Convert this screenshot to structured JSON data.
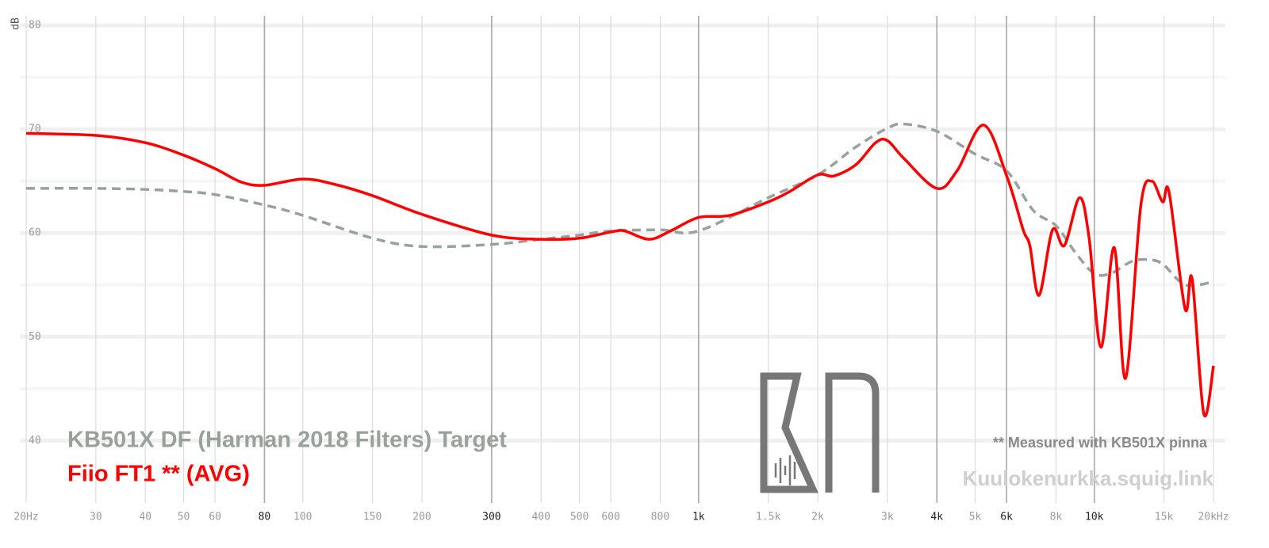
{
  "chart_data": {
    "type": "line",
    "xscale": "log",
    "y_label": "dB",
    "xlim": [
      20,
      20000
    ],
    "ylim": [
      34,
      81
    ],
    "yticks": [
      40,
      50,
      60,
      70,
      80
    ],
    "minor_yticks": [
      45,
      55,
      65,
      75
    ],
    "xticks": [
      {
        "value": 20,
        "label": "20Hz"
      },
      30,
      40,
      50,
      60,
      80,
      100,
      150,
      200,
      300,
      400,
      500,
      600,
      800,
      {
        "value": 1000,
        "label": "1k"
      },
      {
        "value": 1500,
        "label": "1.5k"
      },
      {
        "value": 2000,
        "label": "2k"
      },
      {
        "value": 3000,
        "label": "3k"
      },
      {
        "value": 4000,
        "label": "4k"
      },
      {
        "value": 5000,
        "label": "5k"
      },
      {
        "value": 6000,
        "label": "6k"
      },
      {
        "value": 8000,
        "label": "8k"
      },
      {
        "value": 10000,
        "label": "10k"
      },
      {
        "value": 15000,
        "label": "15k"
      },
      {
        "value": 20000,
        "label": "20kHz"
      }
    ],
    "emphasized_xticks": [
      80,
      300,
      1000,
      4000,
      6000,
      10000
    ],
    "grid": true,
    "series": [
      {
        "name": "KB501X DF (Harman 2018 Filters) Target",
        "color": "#98a29d",
        "dashed": true,
        "x": [
          20,
          30,
          40,
          50,
          60,
          80,
          100,
          150,
          200,
          300,
          400,
          500,
          600,
          800,
          1000,
          1500,
          2000,
          2500,
          3000,
          3300,
          4000,
          5000,
          6000,
          7000,
          8000,
          9000,
          10000,
          11000,
          12500,
          14000,
          15000,
          17000,
          20000
        ],
        "values": [
          64.3,
          64.3,
          64.2,
          64.0,
          63.7,
          62.7,
          61.7,
          59.5,
          58.7,
          58.9,
          59.4,
          59.8,
          60.2,
          60.3,
          60.2,
          63.4,
          65.6,
          68.3,
          70.1,
          70.5,
          69.8,
          67.6,
          66.0,
          62.2,
          60.7,
          58.0,
          56.1,
          56.1,
          57.3,
          57.4,
          56.9,
          55.0,
          55.3
        ]
      },
      {
        "name": "Fiio FT1 ** (AVG)",
        "color": "#ff0000",
        "dashed": false,
        "x": [
          20,
          30,
          40,
          50,
          60,
          70,
          80,
          100,
          120,
          150,
          200,
          300,
          400,
          500,
          600,
          650,
          750,
          850,
          1000,
          1200,
          1500,
          1700,
          2000,
          2200,
          2500,
          2800,
          3000,
          3300,
          4000,
          4500,
          5250,
          6030,
          6610,
          6870,
          7250,
          7840,
          8400,
          9170,
          9700,
          10390,
          11230,
          11990,
          13100,
          13960,
          14880,
          15450,
          16950,
          17660,
          18900,
          20000
        ],
        "values": [
          69.6,
          69.4,
          68.7,
          67.5,
          66.2,
          64.9,
          64.6,
          65.2,
          64.7,
          63.6,
          61.8,
          59.8,
          59.4,
          59.5,
          60.1,
          60.2,
          59.4,
          60.2,
          61.5,
          61.7,
          63.0,
          64.0,
          65.6,
          65.5,
          66.6,
          68.7,
          68.9,
          67.2,
          64.3,
          66.0,
          70.4,
          65.3,
          60.3,
          58.8,
          54.0,
          60.3,
          58.8,
          63.4,
          59.5,
          49.0,
          58.6,
          46.0,
          62.6,
          65.0,
          63.0,
          63.9,
          52.7,
          55.6,
          42.6,
          47.2
        ]
      }
    ],
    "annotation": "** Measured with KB501X pinna",
    "watermark": "Kuulokenurkka.squig.link"
  }
}
